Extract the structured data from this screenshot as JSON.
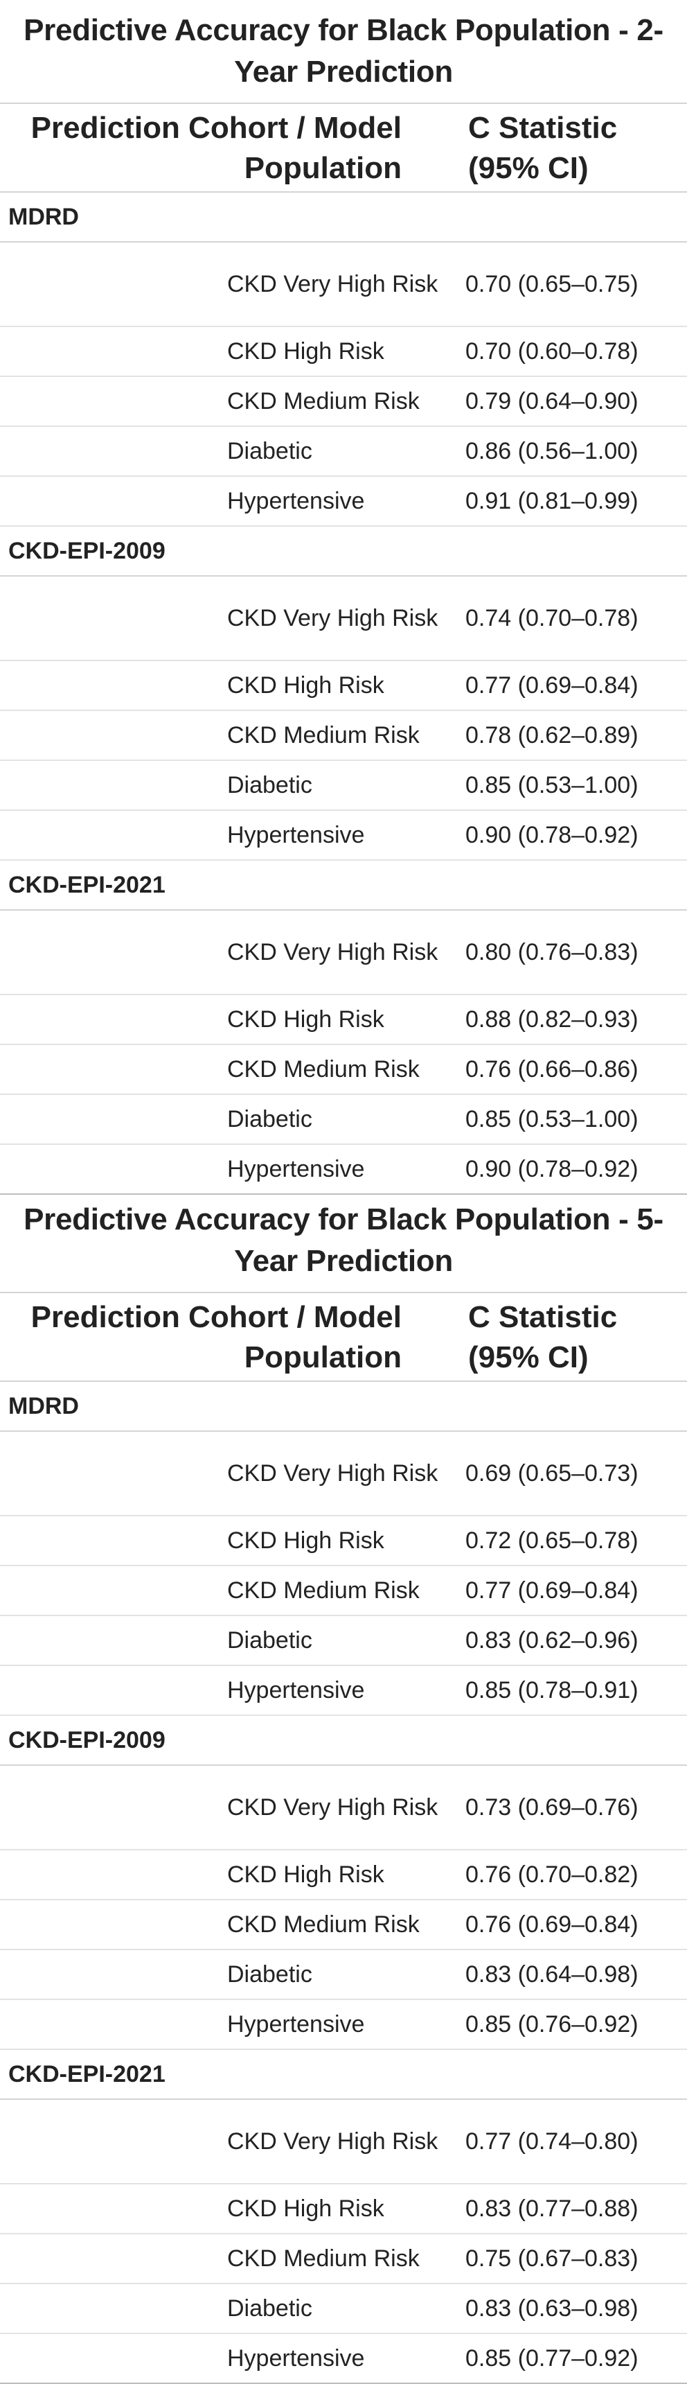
{
  "tables": [
    {
      "title": "Predictive Accuracy for Black Population - 2-Year Prediction",
      "header_left": "Prediction Cohort / Model Population",
      "header_right": "C Statistic (95% CI)",
      "groups": [
        {
          "model": "MDRD",
          "rows": [
            {
              "cohort": "CKD Very High Risk",
              "cstat": "0.70 (0.65–0.75)"
            },
            {
              "cohort": "CKD High Risk",
              "cstat": "0.70 (0.60–0.78)"
            },
            {
              "cohort": "CKD Medium Risk",
              "cstat": "0.79 (0.64–0.90)"
            },
            {
              "cohort": "Diabetic",
              "cstat": "0.86 (0.56–1.00)"
            },
            {
              "cohort": "Hypertensive",
              "cstat": "0.91 (0.81–0.99)"
            }
          ]
        },
        {
          "model": "CKD-EPI-2009",
          "rows": [
            {
              "cohort": "CKD Very High Risk",
              "cstat": "0.74 (0.70–0.78)"
            },
            {
              "cohort": "CKD High Risk",
              "cstat": "0.77 (0.69–0.84)"
            },
            {
              "cohort": "CKD Medium Risk",
              "cstat": "0.78 (0.62–0.89)"
            },
            {
              "cohort": "Diabetic",
              "cstat": "0.85 (0.53–1.00)"
            },
            {
              "cohort": "Hypertensive",
              "cstat": "0.90 (0.78–0.92)"
            }
          ]
        },
        {
          "model": "CKD-EPI-2021",
          "rows": [
            {
              "cohort": "CKD Very High Risk",
              "cstat": "0.80 (0.76–0.83)"
            },
            {
              "cohort": "CKD High Risk",
              "cstat": "0.88 (0.82–0.93)"
            },
            {
              "cohort": "CKD Medium Risk",
              "cstat": "0.76 (0.66–0.86)"
            },
            {
              "cohort": "Diabetic",
              "cstat": "0.85 (0.53–1.00)"
            },
            {
              "cohort": "Hypertensive",
              "cstat": "0.90 (0.78–0.92)"
            }
          ]
        }
      ]
    },
    {
      "title": "Predictive Accuracy for Black Population - 5-Year Prediction",
      "header_left": "Prediction Cohort / Model Population",
      "header_right": "C Statistic (95% CI)",
      "groups": [
        {
          "model": "MDRD",
          "rows": [
            {
              "cohort": "CKD Very High Risk",
              "cstat": "0.69 (0.65–0.73)"
            },
            {
              "cohort": "CKD High Risk",
              "cstat": "0.72 (0.65–0.78)"
            },
            {
              "cohort": "CKD Medium Risk",
              "cstat": "0.77 (0.69–0.84)"
            },
            {
              "cohort": "Diabetic",
              "cstat": "0.83 (0.62–0.96)"
            },
            {
              "cohort": "Hypertensive",
              "cstat": "0.85 (0.78–0.91)"
            }
          ]
        },
        {
          "model": "CKD-EPI-2009",
          "rows": [
            {
              "cohort": "CKD Very High Risk",
              "cstat": "0.73 (0.69–0.76)"
            },
            {
              "cohort": "CKD High Risk",
              "cstat": "0.76 (0.70–0.82)"
            },
            {
              "cohort": "CKD Medium Risk",
              "cstat": "0.76 (0.69–0.84)"
            },
            {
              "cohort": "Diabetic",
              "cstat": "0.83 (0.64–0.98)"
            },
            {
              "cohort": "Hypertensive",
              "cstat": "0.85 (0.76–0.92)"
            }
          ]
        },
        {
          "model": "CKD-EPI-2021",
          "rows": [
            {
              "cohort": "CKD Very High Risk",
              "cstat": "0.77 (0.74–0.80)"
            },
            {
              "cohort": "CKD High Risk",
              "cstat": "0.83 (0.77–0.88)"
            },
            {
              "cohort": "CKD Medium Risk",
              "cstat": "0.75 (0.67–0.83)"
            },
            {
              "cohort": "Diabetic",
              "cstat": "0.83 (0.63–0.98)"
            },
            {
              "cohort": "Hypertensive",
              "cstat": "0.85 (0.77–0.92)"
            }
          ]
        }
      ]
    }
  ]
}
